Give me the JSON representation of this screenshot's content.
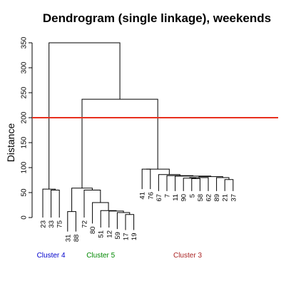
{
  "chart_data": {
    "type": "dendrogram",
    "title": "Dendrogram (single linkage), weekends",
    "ylabel": "Distance",
    "ylim": [
      0,
      350
    ],
    "yticks": [
      0,
      50,
      100,
      150,
      200,
      250,
      300,
      350
    ],
    "cut_height": 200,
    "cut_color": "#e8301e",
    "leaves": [
      {
        "label": "23",
        "height": 0
      },
      {
        "label": "33",
        "height": 0
      },
      {
        "label": "75",
        "height": 0
      },
      {
        "label": "31",
        "height": -28
      },
      {
        "label": "88",
        "height": -28
      },
      {
        "label": "72",
        "height": 0
      },
      {
        "label": "80",
        "height": -12
      },
      {
        "label": "51",
        "height": -20
      },
      {
        "label": "12",
        "height": -20
      },
      {
        "label": "59",
        "height": -23
      },
      {
        "label": "17",
        "height": -25
      },
      {
        "label": "19",
        "height": -25
      },
      {
        "label": "41",
        "height": 57
      },
      {
        "label": "76",
        "height": 57
      },
      {
        "label": "67",
        "height": 53
      },
      {
        "label": "7",
        "height": 53
      },
      {
        "label": "11",
        "height": 53
      },
      {
        "label": "90",
        "height": 53
      },
      {
        "label": "5",
        "height": 53
      },
      {
        "label": "58",
        "height": 53
      },
      {
        "label": "62",
        "height": 53
      },
      {
        "label": "89",
        "height": 53
      },
      {
        "label": "21",
        "height": 53
      },
      {
        "label": "37",
        "height": 53
      }
    ],
    "merges": [
      {
        "left": 1,
        "right": 2,
        "height": 55
      },
      {
        "left": 0,
        "right": "m0",
        "height": 57
      },
      {
        "left": 3,
        "right": 4,
        "height": 12
      },
      {
        "left": 10,
        "right": 11,
        "height": 6
      },
      {
        "left": 9,
        "right": "m3",
        "height": 10
      },
      {
        "left": 8,
        "right": "m4",
        "height": 13
      },
      {
        "left": 7,
        "right": "m5",
        "height": 14
      },
      {
        "left": 6,
        "right": "m6",
        "height": 30
      },
      {
        "left": 5,
        "right": "m7",
        "height": 55
      },
      {
        "left": "m2",
        "right": "m8",
        "height": 59
      },
      {
        "left": 22,
        "right": 23,
        "height": 76
      },
      {
        "left": 18,
        "right": 19,
        "height": 78
      },
      {
        "left": 17,
        "right": "m11",
        "height": 79
      },
      {
        "left": "m12",
        "right": 20,
        "height": 80
      },
      {
        "left": 21,
        "right": "m10",
        "height": 80
      },
      {
        "left": "m13",
        "right": "m14",
        "height": 82
      },
      {
        "left": 16,
        "right": "m15",
        "height": 83
      },
      {
        "left": 15,
        "right": "m16",
        "height": 84
      },
      {
        "left": 14,
        "right": "m17",
        "height": 86
      },
      {
        "left": 12,
        "right": 13,
        "height": 97
      },
      {
        "left": "m19",
        "right": "m18",
        "height": 97
      },
      {
        "left": "m9",
        "right": "m20",
        "height": 237
      },
      {
        "left": "m1",
        "right": "m21",
        "height": 350
      }
    ],
    "clusters": [
      {
        "name": "Cluster 4",
        "color": "#0000cc",
        "leaves": [
          "23",
          "33",
          "75"
        ]
      },
      {
        "name": "Cluster 5",
        "color": "#008800",
        "leaves": [
          "31",
          "88",
          "72",
          "80",
          "51",
          "12",
          "59",
          "17",
          "19"
        ]
      },
      {
        "name": "Cluster 3",
        "color": "#aa2222",
        "leaves": [
          "41",
          "76",
          "67",
          "7",
          "11",
          "90",
          "5",
          "58",
          "62",
          "89",
          "21",
          "37"
        ]
      }
    ]
  }
}
